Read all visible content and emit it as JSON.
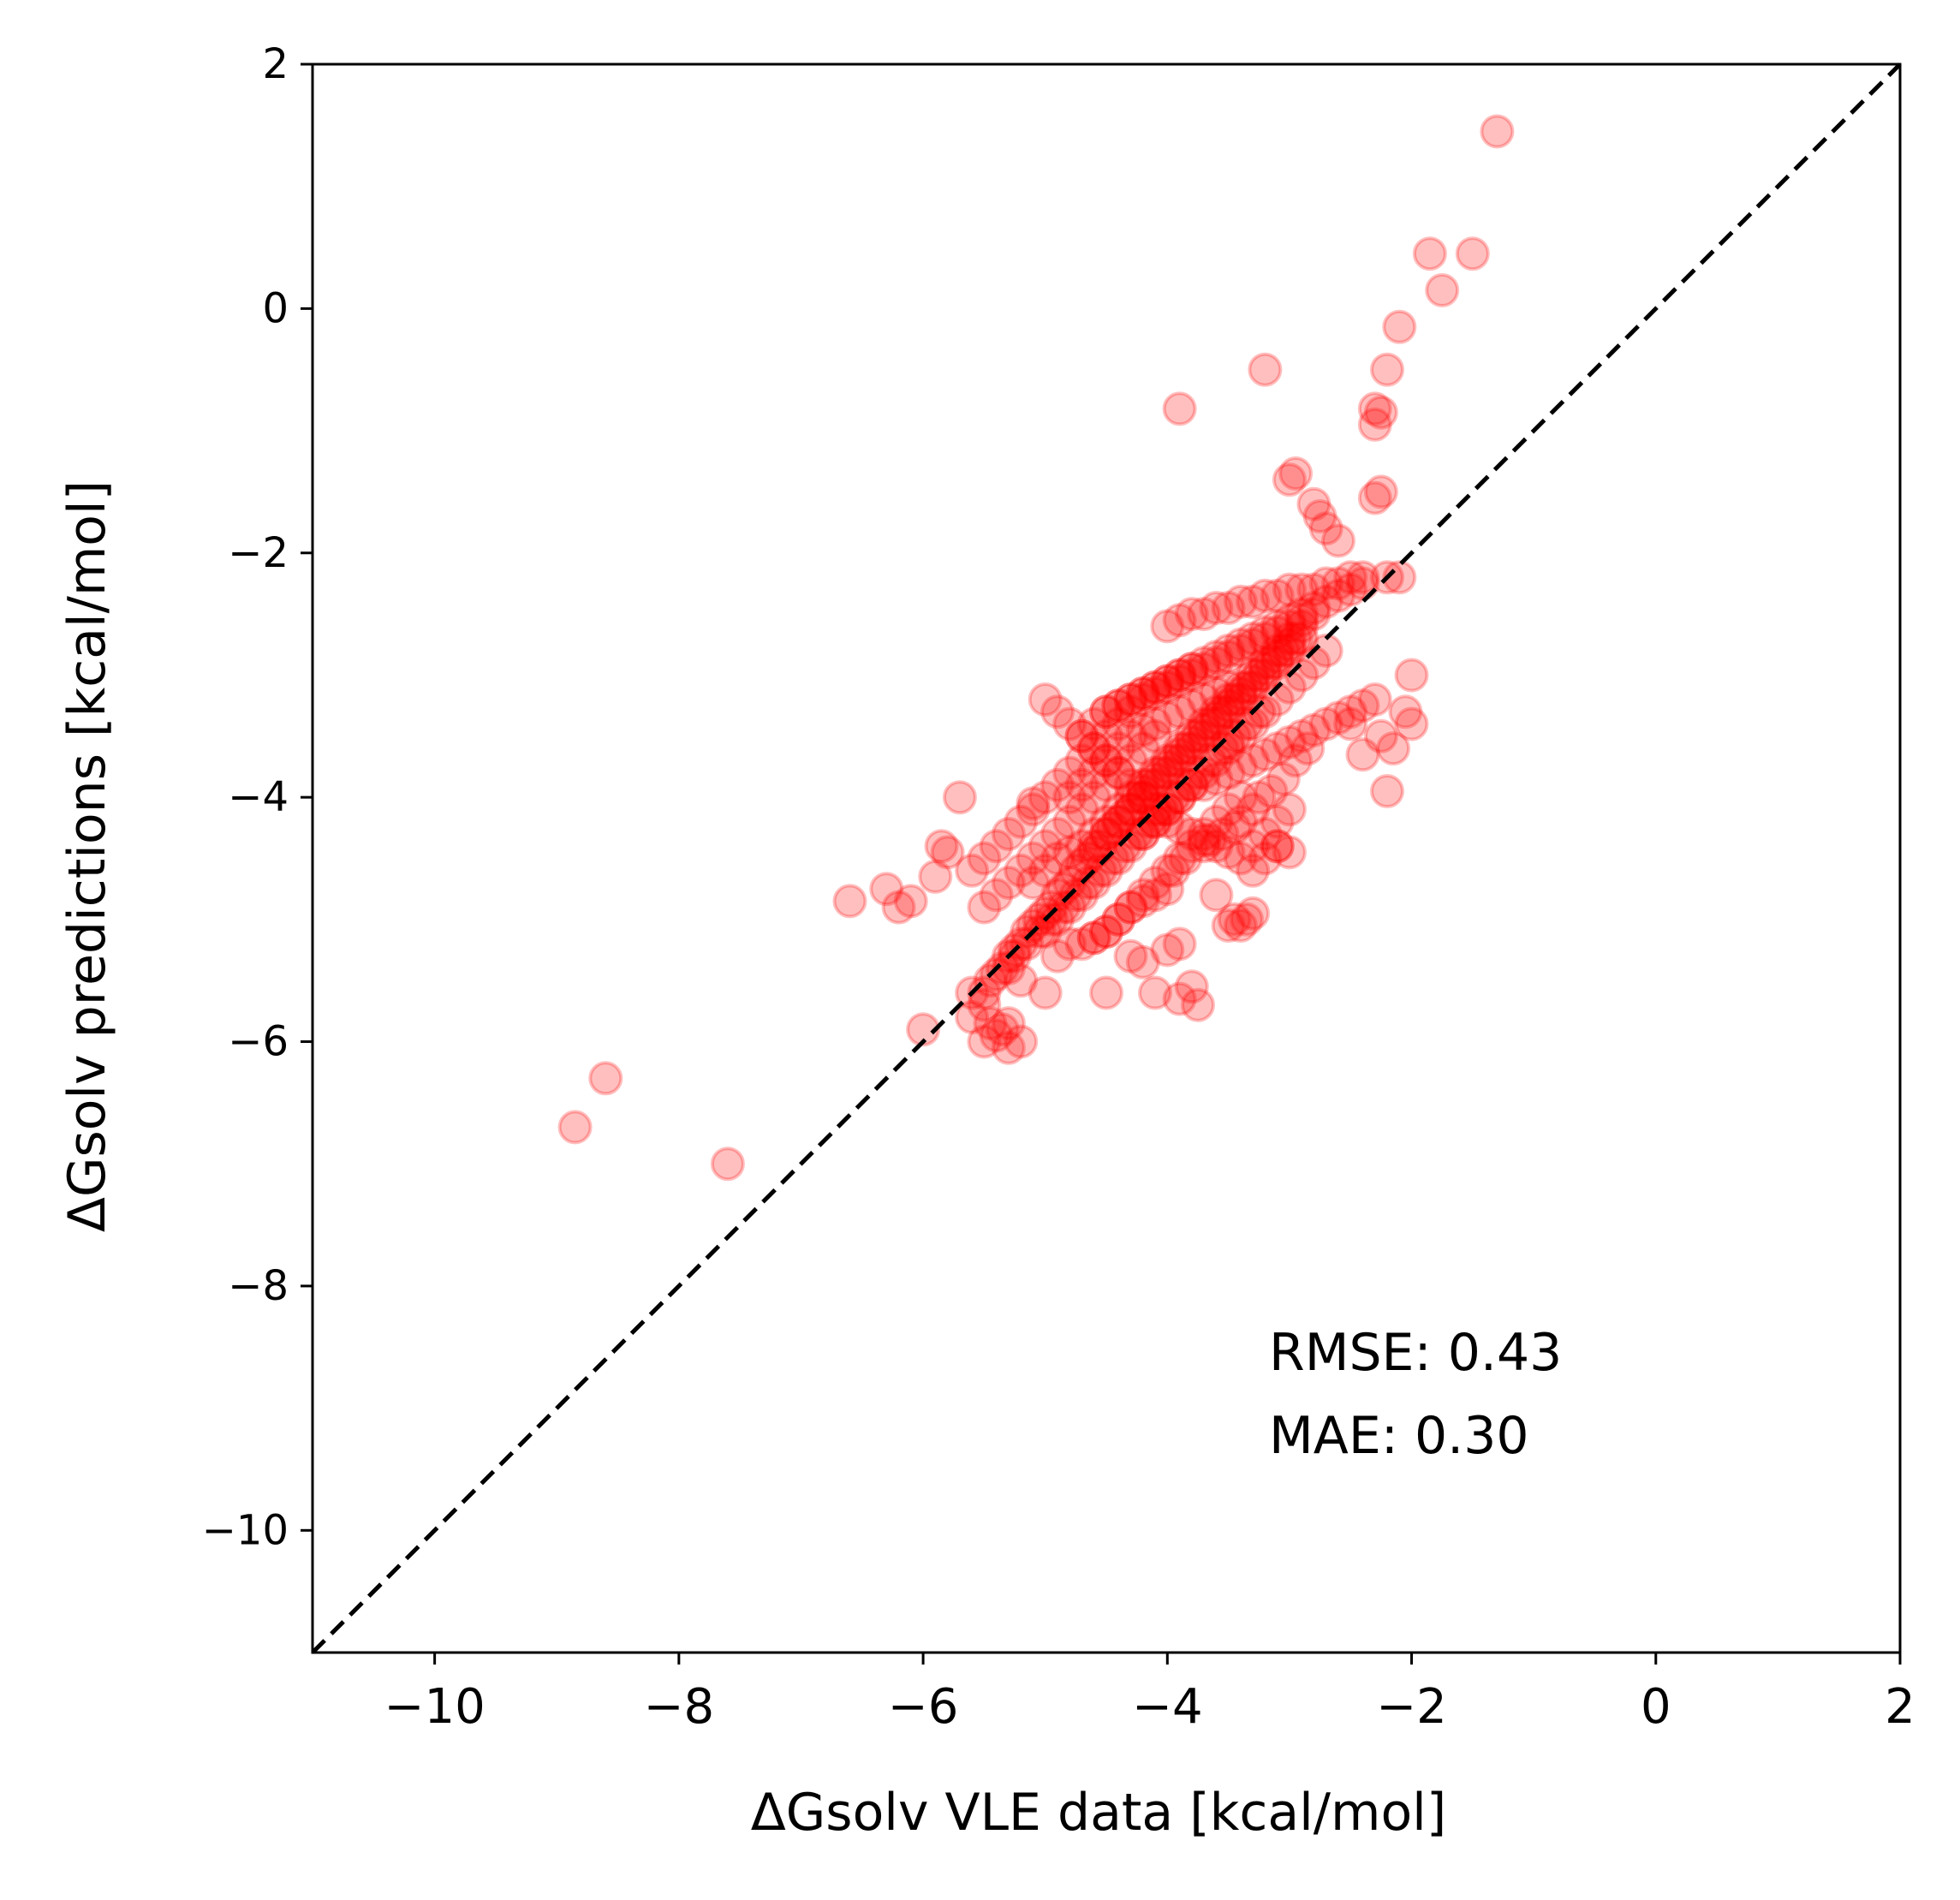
{
  "chart_data": {
    "type": "scatter",
    "title": "",
    "xlabel": "ΔGsolv VLE data [kcal/mol]",
    "ylabel": "ΔGsolv predictions [kcal/mol]",
    "xlim": [
      -11,
      2
    ],
    "ylim": [
      -11,
      2
    ],
    "xticks": [
      -10,
      -8,
      -6,
      -4,
      -2,
      0,
      2
    ],
    "yticks": [
      -10,
      -8,
      -6,
      -4,
      -2,
      0,
      2
    ],
    "xtick_labels": [
      "−10",
      "−8",
      "−6",
      "−4",
      "−2",
      "0",
      "2"
    ],
    "ytick_labels": [
      "−10",
      "−8",
      "−6",
      "−4",
      "−2",
      "0",
      "2"
    ],
    "grid": false,
    "reference_line": {
      "style": "dashed",
      "color": "#000000",
      "from": [
        -11,
        -11
      ],
      "to": [
        2,
        2
      ]
    },
    "series": [
      {
        "name": "predictions",
        "color": "#ff0000",
        "alpha": 0.25,
        "x": [
          -1.3,
          -1.85,
          -1.5,
          -1.75,
          -2.1,
          -2.2,
          -3.2,
          -3.9,
          -2.3,
          -2.25,
          -2.3,
          -2.25,
          -2.3,
          -2.95,
          -3.0,
          -2.8,
          -2.75,
          -2.7,
          -2.6,
          -2.1,
          -2.2,
          -2.4,
          -2.0,
          -2.05,
          -2.0,
          -2.15,
          -2.25,
          -2.5,
          -2.4,
          -2.2,
          -8.6,
          -8.85,
          -7.6,
          -6.6,
          -6.3,
          -6.1,
          -6.2,
          -5.9,
          -5.85,
          -5.8,
          -6.0,
          -5.3,
          -5.7,
          -5.1,
          -5.0,
          -4.5,
          -3.75,
          -3.3,
          -3.1,
          -3.0,
          -3.4,
          -3.5,
          -3.45,
          -3.35,
          -4.1,
          -3.9,
          -3.8,
          -3.6,
          -3.3,
          -3.2,
          -3.1,
          -4.3,
          -4.2,
          -4.0,
          -3.9,
          -5.5,
          -5.4,
          -5.3,
          -5.2,
          -5.6,
          -5.45,
          -5.35,
          -5.5,
          -5.6,
          -5.2,
          -4.9,
          -4.8,
          -4.6,
          -4.5,
          -4.4,
          -4.3,
          -4.2,
          -4.1,
          -4.0,
          -3.95,
          -3.85,
          -3.7,
          -3.65,
          -3.55,
          -3.45,
          -3.4,
          -3.3,
          -3.25,
          -3.15,
          -3.05,
          -2.95,
          -2.85,
          -5.0,
          -4.95,
          -4.85,
          -4.75,
          -4.65,
          -4.55,
          -4.45,
          -4.35,
          -4.25,
          -4.15,
          -4.05,
          -3.95,
          -3.85,
          -3.75,
          -3.65,
          -3.55,
          -3.5,
          -3.45,
          -3.35,
          -3.25,
          -5.3,
          -5.25,
          -5.15,
          -5.05,
          -4.9,
          -4.8,
          -4.7,
          -4.6,
          -4.5,
          -4.4,
          -4.3,
          -4.2,
          -4.1,
          -4.0,
          -3.9,
          -3.8,
          -5.5,
          -5.4,
          -5.3,
          -5.2,
          -5.1,
          -5.0,
          -4.9,
          -4.8,
          -4.7,
          -4.6,
          -4.5,
          -4.4,
          -4.3,
          -4.2,
          -4.1,
          -5.6,
          -5.5,
          -5.4,
          -5.3,
          -5.2,
          -5.1,
          -5.0,
          -4.9,
          -4.8,
          -4.7,
          -4.6,
          -4.5,
          -4.4,
          -4.3,
          -4.2,
          -4.1,
          -4.0,
          -3.9,
          -3.8,
          -3.7,
          -3.6,
          -3.5,
          -3.4,
          -3.3,
          -3.2,
          -3.1,
          -3.0,
          -2.9,
          -2.8,
          -4.5,
          -4.4,
          -4.3,
          -4.2,
          -4.1,
          -4.0,
          -3.9,
          -3.8,
          -3.7,
          -3.6,
          -3.5,
          -3.4,
          -3.3,
          -3.2,
          -3.1,
          -3.0,
          -2.9,
          -2.8,
          -2.7,
          -2.6,
          -2.5,
          -4.0,
          -3.9,
          -3.8,
          -3.7,
          -3.6,
          -3.5,
          -3.4,
          -3.3,
          -3.2,
          -3.1,
          -3.0,
          -2.9,
          -2.8,
          -2.7,
          -2.6,
          -2.5,
          -2.4,
          -3.7,
          -3.6,
          -3.5,
          -3.4,
          -3.3,
          -3.2,
          -3.1,
          -3.0,
          -2.9,
          -2.8,
          -2.7,
          -2.6,
          -2.5,
          -2.4,
          -2.3,
          -5.1,
          -5.0,
          -4.9,
          -4.8,
          -4.7,
          -4.6,
          -4.5,
          -4.4,
          -4.3,
          -4.2,
          -4.1,
          -4.0,
          -3.9,
          -3.8,
          -3.7,
          -3.6,
          -3.5,
          -3.4,
          -3.3,
          -3.2,
          -3.1,
          -3.0,
          -2.9,
          -4.6,
          -4.5,
          -4.4,
          -4.3,
          -4.2,
          -4.1,
          -4.0,
          -3.9,
          -3.8,
          -3.7,
          -3.6,
          -3.5,
          -3.4,
          -3.3,
          -3.2,
          -3.1,
          -3.0,
          -2.9,
          -4.2,
          -4.1,
          -4.0,
          -3.9,
          -3.8,
          -3.7,
          -3.6,
          -3.5,
          -3.4,
          -3.3,
          -3.2,
          -3.1,
          -3.0,
          -2.9,
          -2.8,
          -2.7,
          -5.5,
          -5.45,
          -5.4,
          -5.35,
          -5.3,
          -5.25,
          -5.2,
          -5.15,
          -5.1,
          -5.05,
          -5.0,
          -4.95,
          -4.9,
          -4.85,
          -4.8,
          -4.75,
          -4.7,
          -4.65,
          -4.6,
          -4.55,
          -4.5,
          -4.45,
          -4.4,
          -4.35,
          -4.3,
          -4.25,
          -4.2,
          -4.15,
          -4.1,
          -4.05,
          -4.0,
          -3.95,
          -3.9,
          -3.85,
          -3.8,
          -3.75,
          -3.7,
          -3.65,
          -3.6,
          -3.55,
          -3.5,
          -3.45,
          -3.4,
          -3.35,
          -3.3,
          -3.25,
          -3.2,
          -3.15,
          -3.1,
          -3.05,
          -3.0,
          -2.95,
          -4.7,
          -4.6,
          -4.5,
          -4.4,
          -4.3,
          -4.2,
          -4.1,
          -4.0,
          -3.9,
          -3.8,
          -4.8,
          -4.7,
          -4.6,
          -4.5,
          -4.4,
          -4.3,
          -4.2,
          -4.1,
          -4.0,
          -3.9,
          -3.8,
          -3.7,
          -3.6,
          -3.5,
          -4.7,
          -4.6,
          -4.5,
          -4.4,
          -4.3,
          -4.2,
          -4.1,
          -4.0,
          -3.9,
          -3.8,
          -3.7,
          -3.6,
          -3.5,
          -3.4,
          -5.0,
          -4.9,
          -4.8,
          -4.7,
          -4.6,
          -4.5,
          -4.4,
          -4.3,
          -4.2,
          -4.1,
          -4.0,
          -3.9,
          -3.8,
          -3.7,
          -3.6,
          -3.5,
          -3.4,
          -3.3,
          -3.2,
          -3.1,
          -3.0
        ],
        "y": [
          1.45,
          0.45,
          0.45,
          0.15,
          -0.15,
          -0.5,
          -0.5,
          -0.82,
          -0.82,
          -0.85,
          -0.95,
          -1.5,
          -1.55,
          -1.35,
          -1.4,
          -1.6,
          -1.7,
          -1.8,
          -1.9,
          -2.2,
          -2.2,
          -2.25,
          -3.0,
          -3.3,
          -3.4,
          -3.6,
          -3.5,
          -3.4,
          -3.65,
          -3.95,
          -6.3,
          -6.7,
          -7.0,
          -4.85,
          -4.75,
          -4.85,
          -4.9,
          -4.65,
          -4.4,
          -4.45,
          -5.9,
          -5.85,
          -4.0,
          -4.05,
          -5.6,
          -5.6,
          -5.7,
          -4.95,
          -4.4,
          -4.45,
          -5.05,
          -5.05,
          -5.0,
          -5.0,
          -5.6,
          -5.65,
          -5.55,
          -4.8,
          -4.6,
          -4.5,
          -4.4,
          -5.3,
          -5.35,
          -5.25,
          -5.2,
          -6.0,
          -5.95,
          -6.05,
          -6.0,
          -5.8,
          -5.85,
          -5.9,
          -5.7,
          -5.6,
          -5.5,
          -5.3,
          -5.2,
          -5.15,
          -5.1,
          -5.0,
          -4.9,
          -4.85,
          -4.8,
          -4.75,
          -4.6,
          -4.5,
          -4.4,
          -4.35,
          -4.3,
          -4.25,
          -4.2,
          -4.1,
          -4.0,
          -3.95,
          -3.85,
          -3.7,
          -3.6,
          -5.1,
          -5.0,
          -4.9,
          -4.8,
          -4.7,
          -4.6,
          -4.5,
          -4.4,
          -4.3,
          -4.2,
          -4.1,
          -4.0,
          -3.9,
          -3.8,
          -3.7,
          -3.6,
          -3.55,
          -3.5,
          -3.4,
          -3.3,
          -5.4,
          -5.3,
          -5.2,
          -5.1,
          -5.0,
          -4.9,
          -4.8,
          -4.7,
          -4.6,
          -4.5,
          -4.4,
          -4.3,
          -4.2,
          -4.1,
          -4.0,
          -3.9,
          -4.9,
          -4.8,
          -4.7,
          -4.6,
          -4.5,
          -4.4,
          -4.3,
          -4.2,
          -4.1,
          -4.0,
          -3.9,
          -3.8,
          -3.7,
          -3.6,
          -3.5,
          -4.6,
          -4.5,
          -4.4,
          -4.3,
          -4.2,
          -4.1,
          -4.0,
          -3.9,
          -3.8,
          -3.7,
          -3.6,
          -3.5,
          -3.4,
          -3.3,
          -3.2,
          -3.15,
          -3.1,
          -3.05,
          -3.0,
          -2.95,
          -2.9,
          -2.85,
          -2.8,
          -2.75,
          -2.7,
          -2.65,
          -2.6,
          -2.55,
          -2.5,
          -3.3,
          -3.25,
          -3.2,
          -3.15,
          -3.1,
          -3.05,
          -3.0,
          -2.95,
          -2.9,
          -2.85,
          -2.8,
          -2.75,
          -2.7,
          -2.65,
          -2.6,
          -2.55,
          -2.5,
          -2.45,
          -2.4,
          -2.35,
          -2.3,
          -2.6,
          -2.55,
          -2.5,
          -2.5,
          -2.45,
          -2.45,
          -2.4,
          -2.4,
          -2.35,
          -2.35,
          -2.3,
          -2.3,
          -2.3,
          -2.25,
          -2.25,
          -2.2,
          -2.2,
          -3.9,
          -3.85,
          -3.8,
          -3.75,
          -3.7,
          -3.65,
          -3.6,
          -3.55,
          -3.5,
          -3.45,
          -3.4,
          -3.35,
          -3.3,
          -3.25,
          -3.2,
          -4.7,
          -4.6,
          -4.5,
          -4.45,
          -4.4,
          -4.3,
          -4.2,
          -4.1,
          -4.0,
          -3.9,
          -3.8,
          -3.7,
          -3.6,
          -3.5,
          -3.4,
          -3.3,
          -3.2,
          -3.1,
          -3.0,
          -2.9,
          -2.8,
          -2.7,
          -2.6,
          -4.4,
          -4.3,
          -4.2,
          -4.1,
          -4.0,
          -3.9,
          -3.8,
          -3.7,
          -3.6,
          -3.5,
          -3.4,
          -3.3,
          -3.2,
          -3.1,
          -3.0,
          -2.9,
          -2.8,
          -2.7,
          -4.3,
          -4.2,
          -4.1,
          -4.0,
          -3.9,
          -3.8,
          -3.7,
          -3.6,
          -3.5,
          -3.4,
          -3.3,
          -3.2,
          -3.1,
          -3.0,
          -2.9,
          -2.8,
          -5.6,
          -5.5,
          -5.45,
          -5.4,
          -5.3,
          -5.25,
          -5.2,
          -5.1,
          -5.05,
          -5.0,
          -4.95,
          -4.9,
          -4.8,
          -4.75,
          -4.7,
          -4.6,
          -4.55,
          -4.5,
          -4.45,
          -4.4,
          -4.3,
          -4.25,
          -4.2,
          -4.15,
          -4.1,
          -4.0,
          -3.95,
          -3.9,
          -3.85,
          -3.8,
          -3.75,
          -3.7,
          -3.65,
          -3.6,
          -3.55,
          -3.5,
          -3.45,
          -3.4,
          -3.35,
          -3.3,
          -3.25,
          -3.2,
          -3.15,
          -3.1,
          -3.05,
          -3.0,
          -2.95,
          -2.9,
          -2.85,
          -2.8,
          -2.75,
          -2.7,
          -3.5,
          -3.4,
          -3.3,
          -3.25,
          -3.2,
          -3.15,
          -3.1,
          -3.05,
          -3.0,
          -2.95,
          -4.0,
          -3.9,
          -3.8,
          -3.7,
          -3.6,
          -3.5,
          -3.45,
          -3.4,
          -3.35,
          -3.3,
          -3.25,
          -3.2,
          -3.15,
          -3.1,
          -5.2,
          -5.15,
          -5.1,
          -5.0,
          -4.9,
          -4.8,
          -4.7,
          -4.6,
          -4.5,
          -4.4,
          -4.3,
          -4.2,
          -4.1,
          -4.0,
          -3.2,
          -3.3,
          -3.4,
          -3.5,
          -3.6,
          -3.7,
          -3.8,
          -3.9,
          -4.0,
          -4.1,
          -4.2,
          -4.25,
          -4.3,
          -4.35,
          -4.4,
          -4.45,
          -4.5,
          -4.4,
          -4.3,
          -4.2,
          -4.1
        ]
      }
    ],
    "annotations": [
      "RMSE: 0.43",
      "MAE: 0.30"
    ]
  }
}
